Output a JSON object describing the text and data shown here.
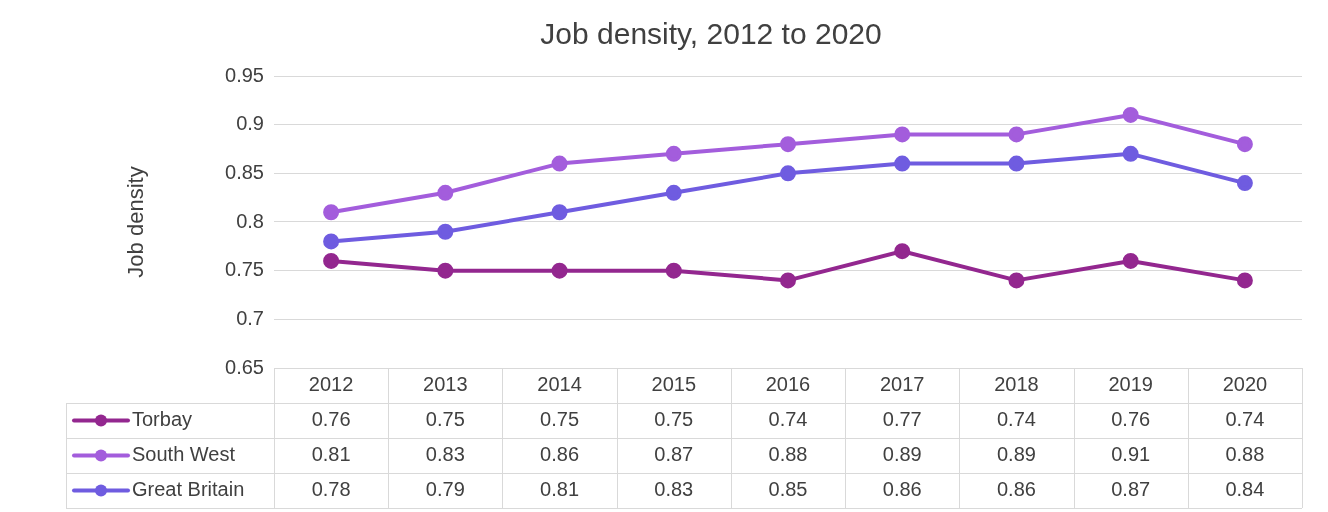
{
  "chart_data": {
    "type": "line",
    "title": "Job density, 2012 to 2020",
    "ylabel": "Job density",
    "categories": [
      "2012",
      "2013",
      "2014",
      "2015",
      "2016",
      "2017",
      "2018",
      "2019",
      "2020"
    ],
    "series": [
      {
        "name": "Torbay",
        "color": "#93278f",
        "values": [
          0.76,
          0.75,
          0.75,
          0.75,
          0.74,
          0.77,
          0.74,
          0.76,
          0.74
        ]
      },
      {
        "name": "South West",
        "color": "#a35ddc",
        "values": [
          0.81,
          0.83,
          0.86,
          0.87,
          0.88,
          0.89,
          0.89,
          0.91,
          0.88
        ]
      },
      {
        "name": "Great Britain",
        "color": "#6f5ce0",
        "values": [
          0.78,
          0.79,
          0.81,
          0.83,
          0.85,
          0.86,
          0.86,
          0.87,
          0.84
        ]
      }
    ],
    "ylim": [
      0.65,
      0.95
    ],
    "yticks": [
      0.65,
      0.7,
      0.75,
      0.8,
      0.85,
      0.9,
      0.95
    ],
    "grid": "y",
    "legend": "bottom",
    "marker": "circle",
    "line_style": "solid",
    "data_labels": true
  }
}
